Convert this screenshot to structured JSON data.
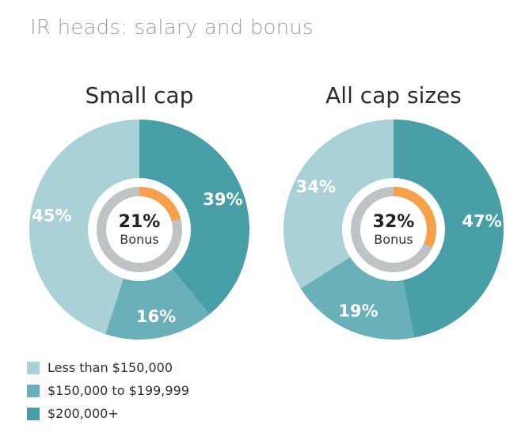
{
  "title": "IR heads: salary and bonus",
  "colors": {
    "less_than_150k": "#abd1d8",
    "150k_to_199k": "#69b0b8",
    "200k_plus": "#489fa8",
    "bonus": "#f7a04a",
    "bonus_track": "#c0c3c6"
  },
  "legend": [
    {
      "label": "Less than $150,000",
      "color": "#abd1d8"
    },
    {
      "label": "$150,000 to $199,999",
      "color": "#69b0b8"
    },
    {
      "label": "$200,000+",
      "color": "#489fa8"
    }
  ],
  "chart_data": [
    {
      "type": "pie",
      "title": "Small cap",
      "categories": [
        "$200,000+",
        "$150,000 to $199,999",
        "Less than $150,000"
      ],
      "values": [
        39,
        16,
        45
      ],
      "labels": [
        "39%",
        "16%",
        "45%"
      ],
      "center": {
        "value": 21,
        "value_label": "21%",
        "label": "Bonus"
      }
    },
    {
      "type": "pie",
      "title": "All cap sizes",
      "categories": [
        "$200,000+",
        "$150,000 to $199,999",
        "Less than $150,000"
      ],
      "values": [
        47,
        19,
        34
      ],
      "labels": [
        "47%",
        "19%",
        "34%"
      ],
      "center": {
        "value": 32,
        "value_label": "32%",
        "label": "Bonus"
      }
    }
  ]
}
